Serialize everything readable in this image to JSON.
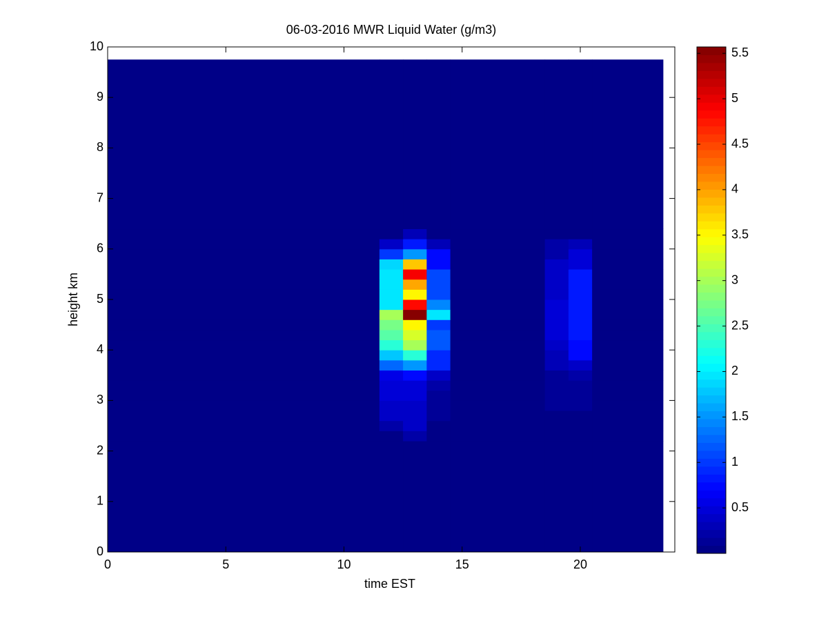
{
  "chart_data": {
    "type": "heatmap",
    "title": "06-03-2016 MWR Liquid Water (g/m3)",
    "x_label": "time EST",
    "y_label": "height km",
    "xlim": [
      0,
      24
    ],
    "xticks": [
      0,
      5,
      10,
      15,
      20
    ],
    "ylim": [
      0,
      10
    ],
    "yticks": [
      0,
      1,
      2,
      3,
      4,
      5,
      6,
      7,
      8,
      9,
      10
    ],
    "x_edges": [
      0,
      11.5,
      12.5,
      13.5,
      14.5,
      18.5,
      19.5,
      20.5,
      23.5
    ],
    "y_edges": [
      0,
      2.2,
      2.4,
      2.6,
      2.8,
      3.0,
      3.2,
      3.4,
      3.6,
      3.8,
      4.0,
      4.2,
      4.4,
      4.6,
      4.8,
      5.0,
      5.2,
      5.4,
      5.6,
      5.8,
      6.0,
      6.2,
      6.4,
      9.75
    ],
    "values": [
      [
        0,
        0,
        0,
        0,
        0,
        0,
        0,
        0
      ],
      [
        0,
        0,
        0.2,
        0,
        0,
        0,
        0,
        0
      ],
      [
        0,
        0.2,
        0.35,
        0,
        0,
        0,
        0,
        0
      ],
      [
        0,
        0.35,
        0.4,
        0.15,
        0,
        0,
        0,
        0
      ],
      [
        0,
        0.4,
        0.4,
        0.15,
        0,
        0.1,
        0.15,
        0
      ],
      [
        0,
        0.45,
        0.45,
        0.15,
        0,
        0.1,
        0.15,
        0
      ],
      [
        0,
        0.5,
        0.45,
        0.2,
        0,
        0.1,
        0.15,
        0
      ],
      [
        0,
        0.6,
        0.7,
        0.4,
        0,
        0.15,
        0.2,
        0
      ],
      [
        0,
        1.3,
        1.5,
        0.9,
        0,
        0.3,
        0.4,
        0
      ],
      [
        0,
        1.8,
        2.3,
        0.9,
        0,
        0.3,
        0.7,
        0
      ],
      [
        0,
        2.3,
        3.0,
        1.2,
        0,
        0.35,
        0.7,
        0
      ],
      [
        0,
        2.6,
        3.3,
        1.2,
        0,
        0.5,
        0.85,
        0
      ],
      [
        0,
        2.7,
        3.5,
        1.0,
        0,
        0.5,
        0.85,
        0
      ],
      [
        0,
        3.0,
        5.57,
        2.0,
        0,
        0.5,
        0.85,
        0
      ],
      [
        0,
        2.0,
        4.8,
        1.4,
        0,
        0.5,
        0.85,
        0
      ],
      [
        0,
        2.0,
        3.5,
        1.1,
        0,
        0.35,
        0.8,
        0
      ],
      [
        0,
        2.0,
        4.0,
        1.1,
        0,
        0.35,
        0.8,
        0
      ],
      [
        0,
        2.0,
        4.9,
        1.1,
        0,
        0.35,
        0.8,
        0
      ],
      [
        0,
        1.9,
        3.8,
        0.7,
        0,
        0.35,
        0.5,
        0
      ],
      [
        0,
        1.0,
        1.5,
        0.7,
        0,
        0.2,
        0.5,
        0
      ],
      [
        0,
        0.4,
        0.8,
        0.3,
        0,
        0.2,
        0.3,
        0
      ],
      [
        0,
        0,
        0.3,
        0,
        0,
        0,
        0,
        0
      ],
      [
        0,
        0,
        0,
        0,
        0,
        0,
        0,
        0
      ]
    ],
    "colormap": "jet",
    "clim": [
      0,
      5.57
    ],
    "cticks": [
      0.5,
      1,
      {
        "value": 1.5,
        "label": "1.5"
      },
      2,
      {
        "value": 2.5,
        "label": "2.5"
      },
      3,
      {
        "value": 3.5,
        "label": "3.5"
      },
      4,
      {
        "value": 4.5,
        "label": "4.5"
      },
      5,
      {
        "value": 5.5,
        "label": "5.5"
      }
    ]
  }
}
